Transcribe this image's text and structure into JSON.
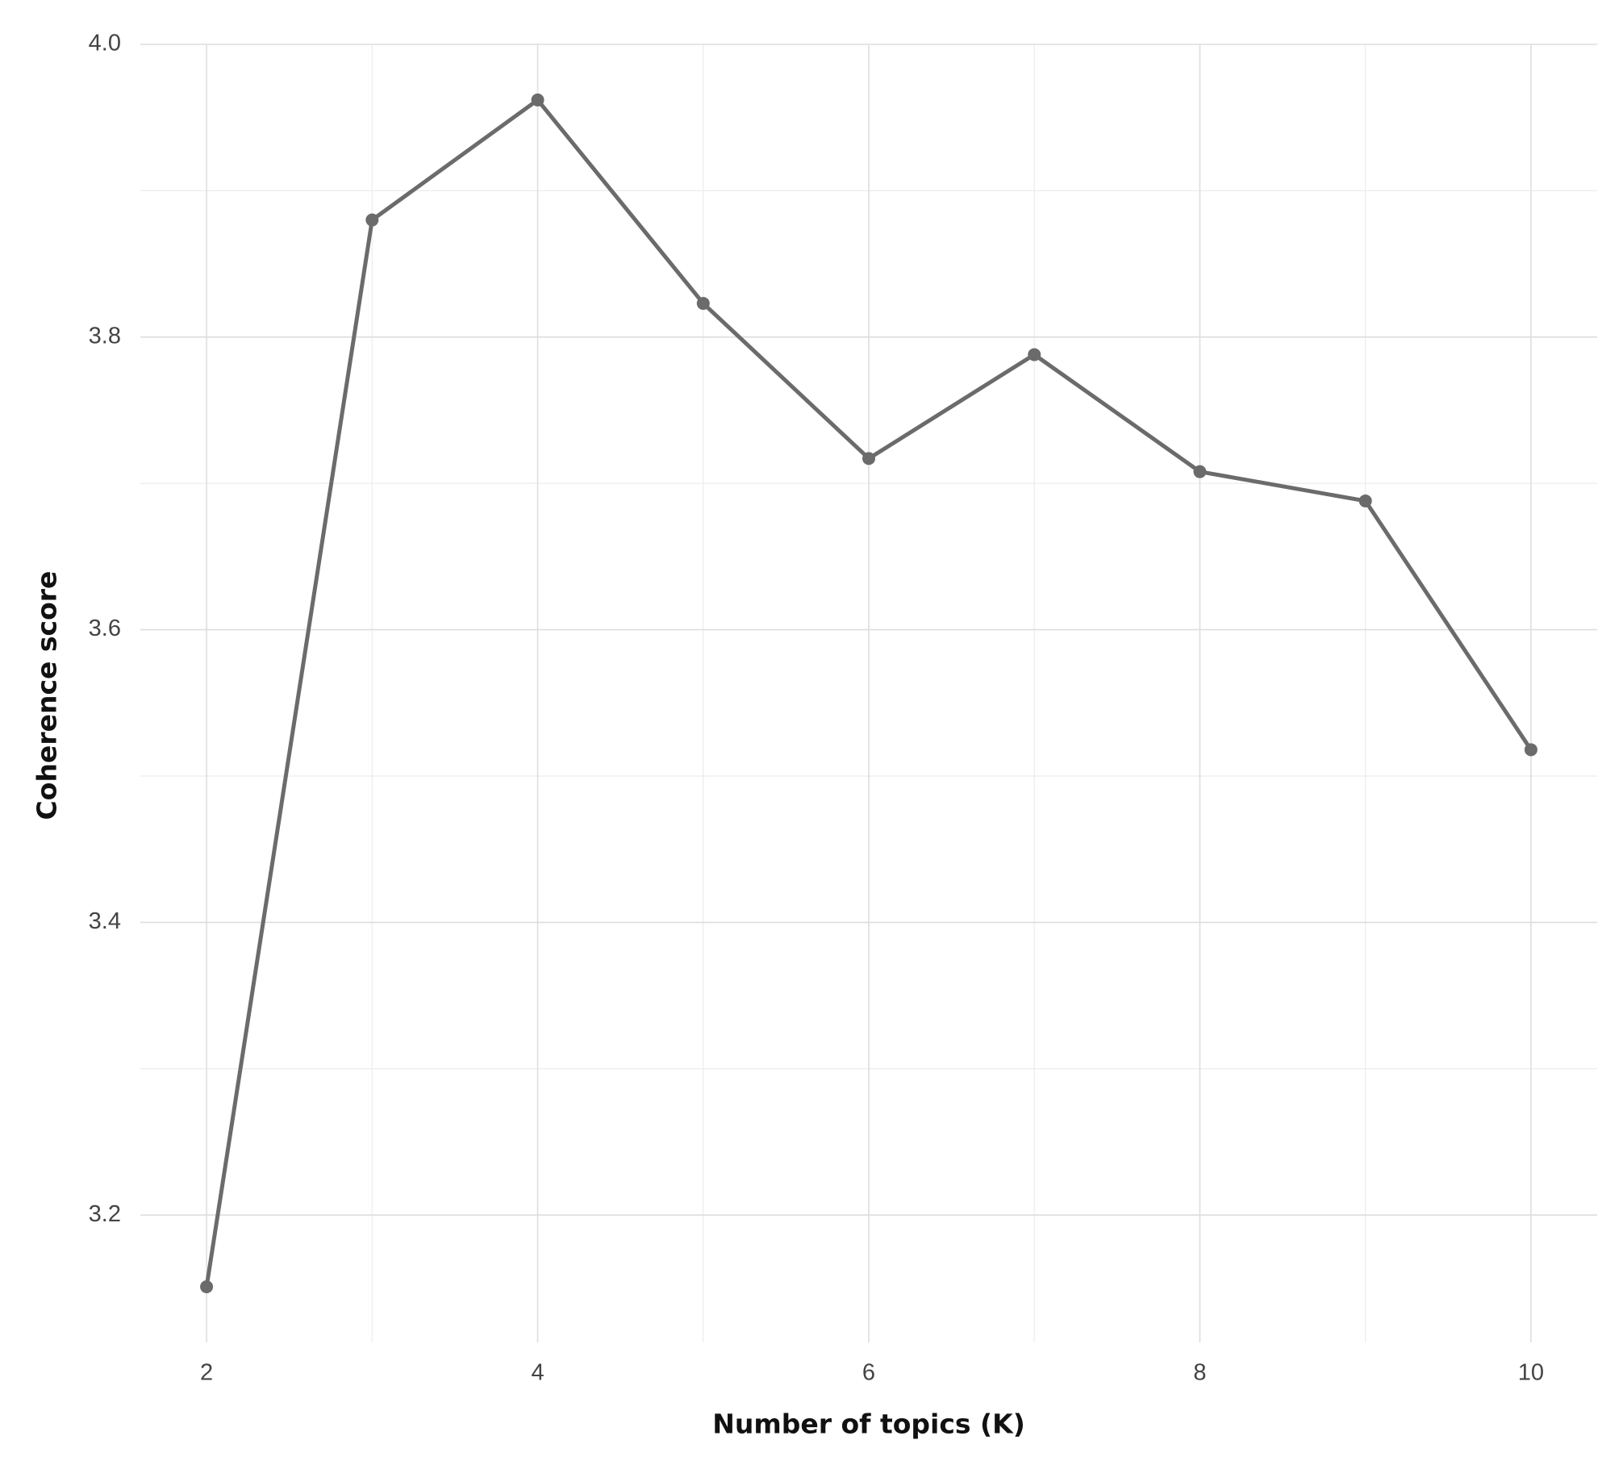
{
  "chart_data": {
    "type": "line",
    "x_label": "Number of topics (K)",
    "y_label": "Coherence score",
    "x": [
      2,
      3,
      4,
      5,
      6,
      7,
      8,
      9,
      10
    ],
    "series": [
      {
        "color": "#6b6b6b",
        "values": [
          3.151,
          3.88,
          3.962,
          3.823,
          3.717,
          3.788,
          3.708,
          3.688,
          3.518
        ]
      }
    ],
    "xlim": [
      1.6,
      10.4
    ],
    "xticks": [
      2,
      4,
      6,
      8,
      10
    ],
    "ylim": [
      3.113,
      4.0
    ],
    "yticks": [
      3.2,
      3.4,
      3.6,
      3.8,
      {
        "value": 4,
        "label": "4.0"
      }
    ],
    "grid": true,
    "minor_grid": true
  }
}
